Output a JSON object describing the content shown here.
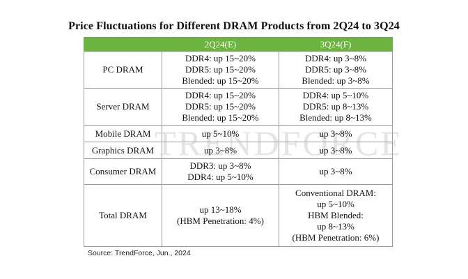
{
  "title": "Price Fluctuations for Different DRAM Products from 2Q24 to 3Q24",
  "watermark": "TRENDFORCE",
  "table": {
    "headers": [
      "",
      "2Q24(E)",
      "3Q24(F)"
    ],
    "rows": [
      {
        "category": "PC DRAM",
        "q2": [
          "DDR4: up 15~20%",
          "DDR5: up 15~20%",
          "Blended: up 15~20%"
        ],
        "q3": [
          "DDR4: up 3~8%",
          "DDR5: up 3~8%",
          "Blended: up 3~8%"
        ]
      },
      {
        "category": "Server DRAM",
        "q2": [
          "DDR4: up 15~20%",
          "DDR5: up 15~20%",
          "Blended: up 15~20%"
        ],
        "q3": [
          "DDR4: up 5~10%",
          "DDR5: up 8~13%",
          "Blended: up 8~13%"
        ]
      },
      {
        "category": "Mobile DRAM",
        "q2": [
          "up 5~10%"
        ],
        "q3": [
          "up 3~8%"
        ]
      },
      {
        "category": "Graphics DRAM",
        "q2": [
          "up 3~8%"
        ],
        "q3": [
          "up 3~8%"
        ]
      },
      {
        "category": "Consumer DRAM",
        "q2": [
          "DDR3: up 3~8%",
          "DDR4: up 5~10%"
        ],
        "q3": [
          "up 3~8%"
        ]
      },
      {
        "category": "Total DRAM",
        "q2": [
          "up 13~18%",
          "(HBM Penetration: 4%)"
        ],
        "q3": [
          "Conventional DRAM:",
          "up 5~10%",
          "HBM Blended:",
          "up 8~13%",
          "(HBM Penetration: 6%)"
        ]
      }
    ]
  },
  "source": "Source: TrendForce, Jun., 2024",
  "colors": {
    "header_bg": "#6db33f",
    "header_text": "#ffffff",
    "border": "#9a9a9a"
  }
}
